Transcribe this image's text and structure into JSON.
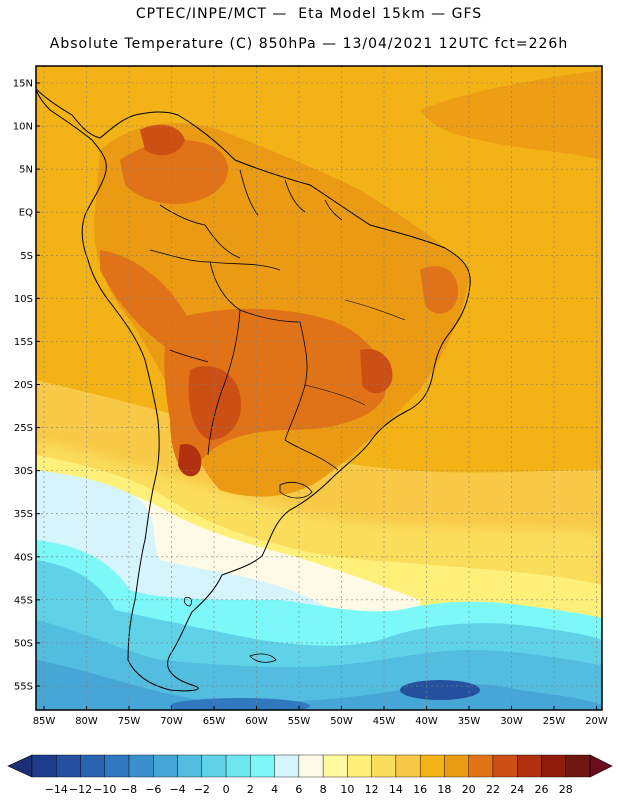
{
  "header": {
    "title_line1": "CPTEC/INPE/MCT —  Eta Model 15km — GFS",
    "title_line2": "Absolute Temperature (C) 850hPa — 13/04/2021 12UTC fct=226h"
  },
  "map": {
    "lat_labels": [
      "15N",
      "10N",
      "5N",
      "EQ",
      "5S",
      "10S",
      "15S",
      "20S",
      "25S",
      "30S",
      "35S",
      "40S",
      "45S",
      "50S",
      "55S"
    ],
    "lon_labels": [
      "85W",
      "80W",
      "75W",
      "70W",
      "65W",
      "60W",
      "55W",
      "50W",
      "45W",
      "40W",
      "35W",
      "30W",
      "25W",
      "20W"
    ],
    "grid": true
  },
  "colorbar": {
    "labels": [
      "-14",
      "-12",
      "-10",
      "-8",
      "-6",
      "-4",
      "-2",
      "0",
      "2",
      "4",
      "6",
      "8",
      "10",
      "12",
      "14",
      "16",
      "18",
      "20",
      "22",
      "24",
      "26",
      "28"
    ],
    "colors": [
      "#1e3c8c",
      "#24509e",
      "#2a64b0",
      "#3079c0",
      "#3b8fcc",
      "#46a6d6",
      "#53bde0",
      "#60d2e8",
      "#6ee6ee",
      "#7cf8f8",
      "#d6f4fb",
      "#fffae6",
      "#fffaa0",
      "#fff07a",
      "#fbdd5c",
      "#f7c946",
      "#f3b317",
      "#eb9a14",
      "#e07318",
      "#cc4f14",
      "#b1300f",
      "#8f1c0b",
      "#701610"
    ],
    "left_arrow_color": "#1a2f74",
    "right_arrow_color": "#6a0c1e"
  }
}
